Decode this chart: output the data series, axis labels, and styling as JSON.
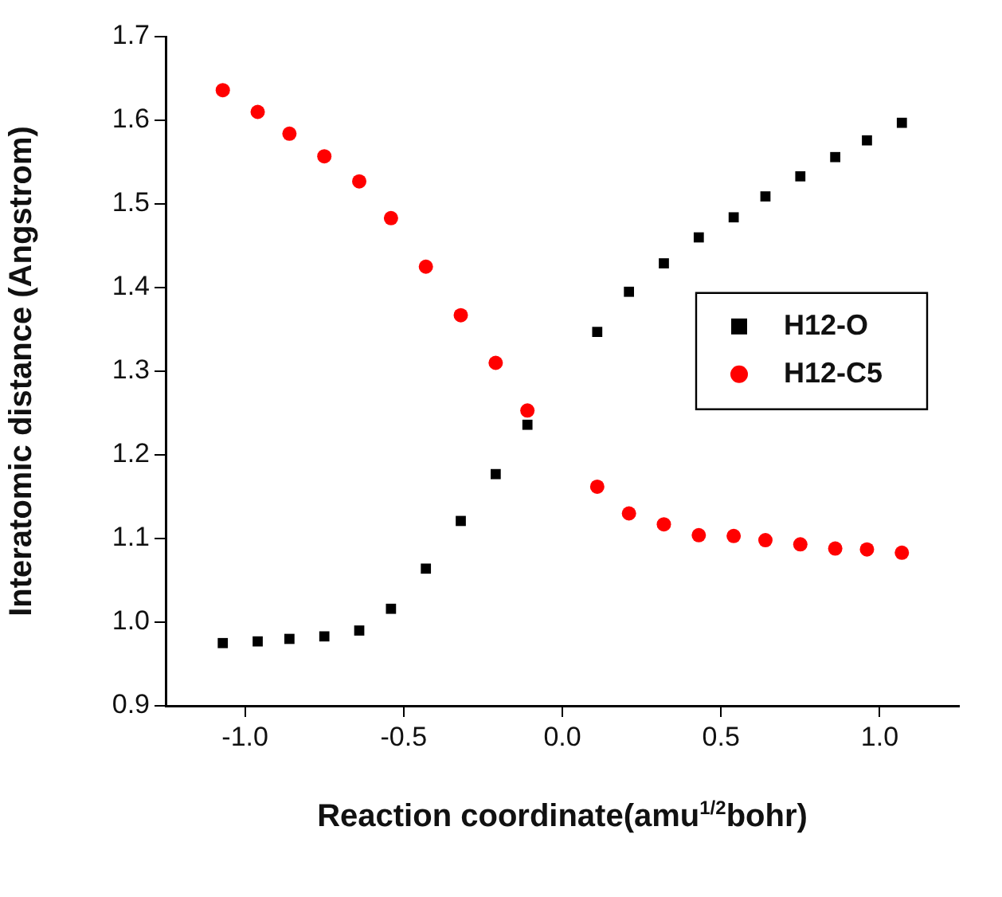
{
  "chart_data": {
    "type": "scatter",
    "xlabel": "Reaction coordinate(amu$^{1/2}$bohr)",
    "ylabel": "Interatomic distance (Angstrom)",
    "x": [
      -1.07,
      -0.96,
      -0.86,
      -0.75,
      -0.64,
      -0.54,
      -0.43,
      -0.32,
      -0.21,
      -0.11,
      0.11,
      0.21,
      0.32,
      0.43,
      0.54,
      0.64,
      0.75,
      0.86,
      0.96,
      1.07
    ],
    "series": [
      {
        "name": "H12-O",
        "color": "#000000",
        "marker": "square",
        "values": [
          0.975,
          0.977,
          0.98,
          0.983,
          0.99,
          1.016,
          1.064,
          1.121,
          1.177,
          1.236,
          1.347,
          1.395,
          1.429,
          1.46,
          1.484,
          1.509,
          1.533,
          1.556,
          1.576,
          1.597
        ]
      },
      {
        "name": "H12-C5",
        "color": "#ff0000",
        "marker": "circle",
        "values": [
          1.636,
          1.61,
          1.584,
          1.557,
          1.527,
          1.483,
          1.425,
          1.367,
          1.31,
          1.253,
          1.162,
          1.13,
          1.117,
          1.104,
          1.103,
          1.098,
          1.093,
          1.088,
          1.087,
          1.083
        ]
      }
    ],
    "xlim": [
      -1.25,
      1.25
    ],
    "xticks": [
      {
        "value": -1,
        "label": "-1.0"
      },
      {
        "value": -0.5,
        "label": "-0.5"
      },
      {
        "value": 0,
        "label": "0.0"
      },
      {
        "value": 0.5,
        "label": "0.5"
      },
      {
        "value": 1,
        "label": "1.0"
      }
    ],
    "ylim": [
      0.9,
      1.7
    ],
    "yticks": [
      0.9,
      {
        "value": 1,
        "label": "1.0"
      },
      1.1,
      1.2,
      1.3,
      1.4,
      1.5,
      1.6,
      1.7
    ],
    "grid": false,
    "legend": "right"
  }
}
